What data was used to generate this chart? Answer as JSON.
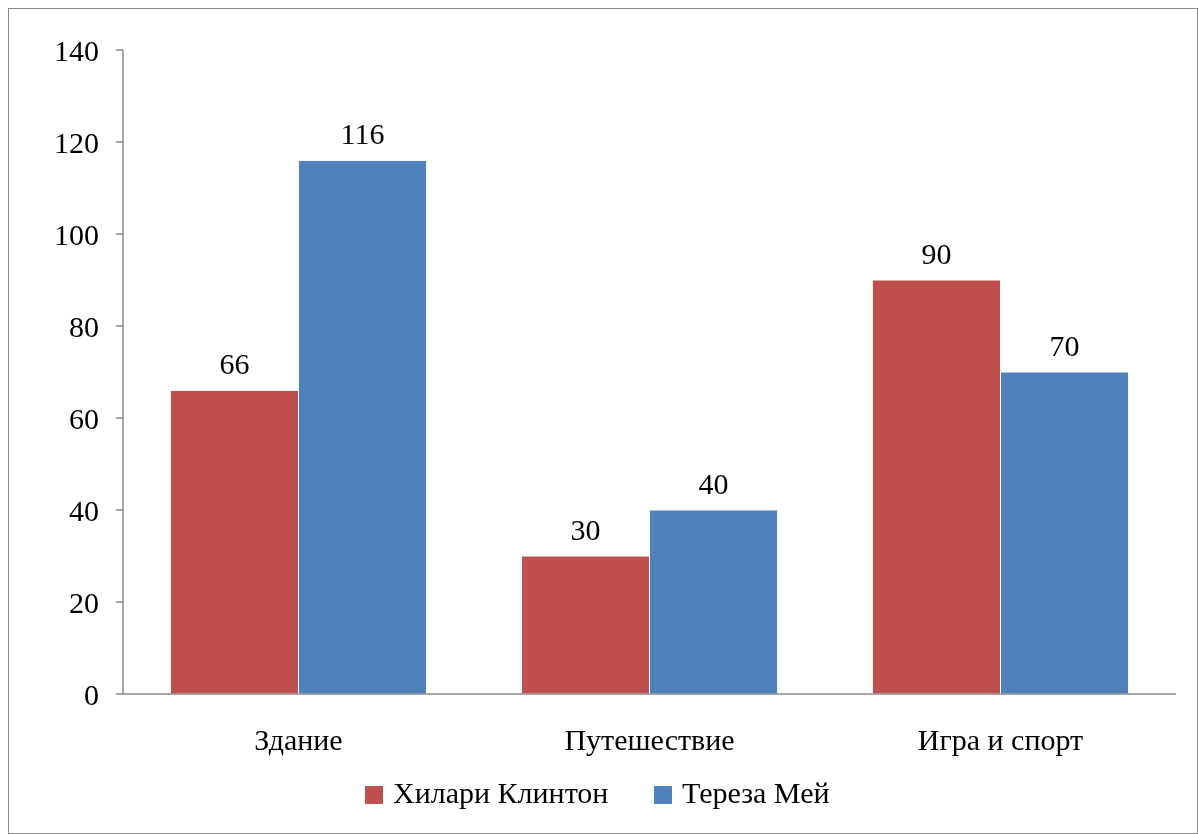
{
  "chart_data": {
    "type": "bar",
    "categories": [
      "Здание",
      "Путешествие",
      "Игра и спорт"
    ],
    "series": [
      {
        "name": "Хилари Клинтон",
        "color": "#c0504d",
        "values": [
          66,
          30,
          90
        ]
      },
      {
        "name": "Тереза Мей",
        "color": "#4f81bd",
        "values": [
          116,
          40,
          70
        ]
      }
    ],
    "ylim": [
      0,
      140
    ],
    "yticks": [
      0,
      20,
      40,
      60,
      80,
      100,
      120,
      140
    ],
    "grid": false,
    "legend": "bottom",
    "data_labels": true
  }
}
